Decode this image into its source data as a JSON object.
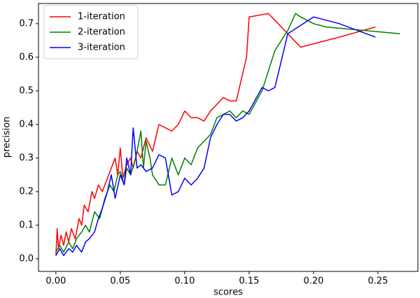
{
  "chart_data": {
    "type": "line",
    "xlabel": "scores",
    "ylabel": "precision",
    "xlim": [
      -0.0135,
      0.281
    ],
    "ylim": [
      -0.0375,
      0.76
    ],
    "xticks": [
      {
        "value": 0,
        "label": "0.00"
      },
      0.05,
      {
        "value": 0.1,
        "label": "0.10"
      },
      0.15,
      {
        "value": 0.2,
        "label": "0.20"
      },
      0.25
    ],
    "yticks": [
      {
        "value": 0,
        "label": "0.0"
      },
      0.1,
      0.2,
      0.3,
      0.4,
      0.5,
      0.6,
      0.7
    ],
    "legend": "upper left",
    "series": [
      {
        "name": "1-iteration",
        "color": "#ff0000",
        "x": [
          0,
          0.001,
          0.002,
          0.004,
          0.006,
          0.008,
          0.01,
          0.012,
          0.015,
          0.018,
          0.02,
          0.022,
          0.025,
          0.028,
          0.03,
          0.033,
          0.036,
          0.04,
          0.043,
          0.046,
          0.048,
          0.05,
          0.052,
          0.055,
          0.058,
          0.06,
          0.063,
          0.066,
          0.07,
          0.075,
          0.08,
          0.085,
          0.09,
          0.095,
          0.1,
          0.105,
          0.11,
          0.115,
          0.12,
          0.13,
          0.135,
          0.14,
          0.148,
          0.15,
          0.165,
          0.19,
          0.2,
          0.22,
          0.248
        ],
        "values": [
          0.01,
          0.09,
          0.03,
          0.07,
          0.04,
          0.08,
          0.05,
          0.09,
          0.06,
          0.12,
          0.1,
          0.16,
          0.14,
          0.2,
          0.18,
          0.22,
          0.2,
          0.24,
          0.27,
          0.3,
          0.25,
          0.33,
          0.24,
          0.28,
          0.3,
          0.27,
          0.32,
          0.3,
          0.36,
          0.32,
          0.4,
          0.39,
          0.38,
          0.4,
          0.44,
          0.42,
          0.42,
          0.41,
          0.44,
          0.48,
          0.47,
          0.47,
          0.6,
          0.72,
          0.73,
          0.63,
          0.64,
          0.66,
          0.69
        ]
      },
      {
        "name": "2-iteration",
        "color": "#008000",
        "x": [
          0,
          0.003,
          0.006,
          0.01,
          0.013,
          0.016,
          0.02,
          0.023,
          0.026,
          0.03,
          0.034,
          0.038,
          0.042,
          0.045,
          0.048,
          0.05,
          0.053,
          0.055,
          0.058,
          0.062,
          0.066,
          0.068,
          0.07,
          0.073,
          0.075,
          0.08,
          0.085,
          0.09,
          0.095,
          0.1,
          0.105,
          0.11,
          0.115,
          0.12,
          0.125,
          0.13,
          0.135,
          0.14,
          0.145,
          0.15,
          0.16,
          0.17,
          0.18,
          0.186,
          0.19,
          0.2,
          0.21,
          0.267
        ],
        "values": [
          0.02,
          0.04,
          0.02,
          0.05,
          0.03,
          0.06,
          0.08,
          0.1,
          0.08,
          0.14,
          0.12,
          0.18,
          0.22,
          0.2,
          0.25,
          0.26,
          0.22,
          0.27,
          0.25,
          0.3,
          0.38,
          0.27,
          0.35,
          0.3,
          0.25,
          0.22,
          0.22,
          0.3,
          0.25,
          0.3,
          0.28,
          0.33,
          0.35,
          0.37,
          0.42,
          0.43,
          0.44,
          0.42,
          0.44,
          0.43,
          0.5,
          0.62,
          0.68,
          0.73,
          0.72,
          0.7,
          0.69,
          0.67
        ]
      },
      {
        "name": "3-iteration",
        "color": "#0000ff",
        "x": [
          0,
          0.003,
          0.006,
          0.01,
          0.013,
          0.016,
          0.02,
          0.023,
          0.026,
          0.03,
          0.033,
          0.036,
          0.04,
          0.043,
          0.046,
          0.05,
          0.053,
          0.055,
          0.058,
          0.06,
          0.063,
          0.066,
          0.07,
          0.075,
          0.08,
          0.085,
          0.09,
          0.095,
          0.1,
          0.105,
          0.11,
          0.115,
          0.12,
          0.125,
          0.13,
          0.135,
          0.14,
          0.145,
          0.15,
          0.16,
          0.165,
          0.17,
          0.18,
          0.2,
          0.22,
          0.248
        ],
        "values": [
          0.01,
          0.03,
          0.01,
          0.03,
          0.02,
          0.04,
          0.02,
          0.05,
          0.06,
          0.08,
          0.12,
          0.15,
          0.2,
          0.25,
          0.18,
          0.25,
          0.22,
          0.3,
          0.25,
          0.39,
          0.27,
          0.28,
          0.26,
          0.27,
          0.31,
          0.3,
          0.19,
          0.2,
          0.24,
          0.22,
          0.24,
          0.27,
          0.36,
          0.4,
          0.43,
          0.43,
          0.41,
          0.42,
          0.44,
          0.51,
          0.5,
          0.51,
          0.67,
          0.72,
          0.7,
          0.66
        ]
      }
    ]
  }
}
